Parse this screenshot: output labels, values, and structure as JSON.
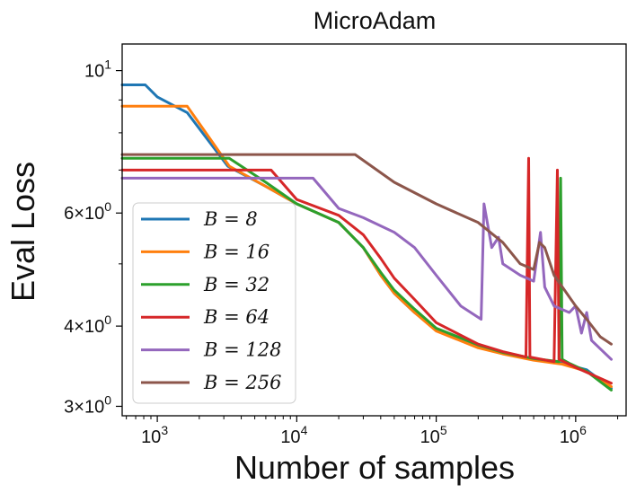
{
  "chart_data": {
    "type": "line",
    "title": "MicroAdam",
    "xlabel": "Number of samples",
    "ylabel": "Eval Loss",
    "x_scale": "log",
    "y_scale": "log",
    "xlim": [
      560,
      2300000
    ],
    "ylim": [
      2.9,
      11.0
    ],
    "x_ticks": [
      {
        "value": 1000,
        "base": "10",
        "exp": "3"
      },
      {
        "value": 10000,
        "base": "10",
        "exp": "4"
      },
      {
        "value": 100000,
        "base": "10",
        "exp": "5"
      },
      {
        "value": 1000000,
        "base": "10",
        "exp": "6"
      }
    ],
    "y_ticks": [
      {
        "value": 10,
        "label": "10",
        "exp": "1"
      },
      {
        "value": 6,
        "label": "6×10",
        "exp": "0"
      },
      {
        "value": 4,
        "label": "4×10",
        "exp": "0"
      },
      {
        "value": 3,
        "label": "3×10",
        "exp": "0"
      }
    ],
    "y_minor_ticks": [
      5,
      7,
      8,
      9
    ],
    "grid": false,
    "legend_position": "lower-left",
    "series": [
      {
        "name": "B = 8",
        "color": "#1f77b4",
        "points": [
          [
            560,
            9.5
          ],
          [
            820,
            9.5
          ],
          [
            1000,
            9.1
          ],
          [
            1640,
            8.6
          ],
          [
            3200,
            7.1
          ],
          [
            6000,
            6.6
          ],
          [
            10000,
            6.2
          ],
          [
            20000,
            5.8
          ],
          [
            30000,
            5.3
          ],
          [
            40000,
            4.8
          ],
          [
            50000,
            4.5
          ],
          [
            70000,
            4.2
          ],
          [
            100000,
            3.95
          ],
          [
            200000,
            3.72
          ],
          [
            300000,
            3.63
          ],
          [
            500000,
            3.55
          ],
          [
            800000,
            3.5
          ],
          [
            1200000,
            3.42
          ],
          [
            1800000,
            3.2
          ]
        ]
      },
      {
        "name": "B = 16",
        "color": "#ff7f0e",
        "points": [
          [
            560,
            8.8
          ],
          [
            1640,
            8.8
          ],
          [
            3280,
            7.1
          ],
          [
            6000,
            6.6
          ],
          [
            10000,
            6.2
          ],
          [
            20000,
            5.8
          ],
          [
            30000,
            5.3
          ],
          [
            40000,
            4.8
          ],
          [
            50000,
            4.5
          ],
          [
            70000,
            4.2
          ],
          [
            100000,
            3.93
          ],
          [
            200000,
            3.7
          ],
          [
            300000,
            3.62
          ],
          [
            500000,
            3.54
          ],
          [
            800000,
            3.49
          ],
          [
            1200000,
            3.4
          ],
          [
            1800000,
            3.22
          ]
        ]
      },
      {
        "name": "B = 32",
        "color": "#2ca02c",
        "points": [
          [
            560,
            7.3
          ],
          [
            3280,
            7.3
          ],
          [
            6000,
            6.7
          ],
          [
            10000,
            6.2
          ],
          [
            20000,
            5.8
          ],
          [
            30000,
            5.3
          ],
          [
            40000,
            4.85
          ],
          [
            50000,
            4.55
          ],
          [
            70000,
            4.25
          ],
          [
            100000,
            3.97
          ],
          [
            200000,
            3.74
          ],
          [
            300000,
            3.64
          ],
          [
            500000,
            3.56
          ],
          [
            760000,
            3.52
          ],
          [
            780000,
            6.8
          ],
          [
            800000,
            3.55
          ],
          [
            900000,
            3.5
          ],
          [
            1200000,
            3.4
          ],
          [
            1800000,
            3.18
          ]
        ]
      },
      {
        "name": "B = 64",
        "color": "#d62728",
        "points": [
          [
            560,
            7.0
          ],
          [
            6550,
            7.0
          ],
          [
            10000,
            6.3
          ],
          [
            20000,
            5.95
          ],
          [
            30000,
            5.55
          ],
          [
            40000,
            5.1
          ],
          [
            50000,
            4.75
          ],
          [
            70000,
            4.4
          ],
          [
            100000,
            4.05
          ],
          [
            200000,
            3.75
          ],
          [
            300000,
            3.65
          ],
          [
            440000,
            3.58
          ],
          [
            460000,
            7.3
          ],
          [
            470000,
            3.58
          ],
          [
            700000,
            3.52
          ],
          [
            740000,
            7.0
          ],
          [
            760000,
            3.55
          ],
          [
            1000000,
            3.45
          ],
          [
            1800000,
            3.26
          ]
        ]
      },
      {
        "name": "B = 128",
        "color": "#9467bd",
        "points": [
          [
            560,
            6.8
          ],
          [
            13100,
            6.8
          ],
          [
            20000,
            6.1
          ],
          [
            30000,
            5.9
          ],
          [
            50000,
            5.6
          ],
          [
            70000,
            5.3
          ],
          [
            100000,
            4.8
          ],
          [
            150000,
            4.3
          ],
          [
            210000,
            4.1
          ],
          [
            220000,
            6.2
          ],
          [
            250000,
            5.3
          ],
          [
            280000,
            5.5
          ],
          [
            300000,
            5.0
          ],
          [
            400000,
            4.8
          ],
          [
            500000,
            4.7
          ],
          [
            560000,
            5.6
          ],
          [
            600000,
            4.6
          ],
          [
            700000,
            4.3
          ],
          [
            900000,
            4.2
          ],
          [
            1000000,
            4.3
          ],
          [
            1100000,
            3.9
          ],
          [
            1200000,
            4.2
          ],
          [
            1300000,
            3.8
          ],
          [
            1800000,
            3.55
          ]
        ]
      },
      {
        "name": "B = 256",
        "color": "#8c564b",
        "points": [
          [
            560,
            7.4
          ],
          [
            26200,
            7.4
          ],
          [
            50000,
            6.7
          ],
          [
            100000,
            6.2
          ],
          [
            200000,
            5.8
          ],
          [
            300000,
            5.4
          ],
          [
            400000,
            5.0
          ],
          [
            500000,
            4.9
          ],
          [
            550000,
            5.4
          ],
          [
            600000,
            5.3
          ],
          [
            700000,
            4.8
          ],
          [
            1000000,
            4.3
          ],
          [
            1200000,
            4.1
          ],
          [
            1500000,
            3.85
          ],
          [
            1800000,
            3.75
          ]
        ]
      }
    ]
  }
}
